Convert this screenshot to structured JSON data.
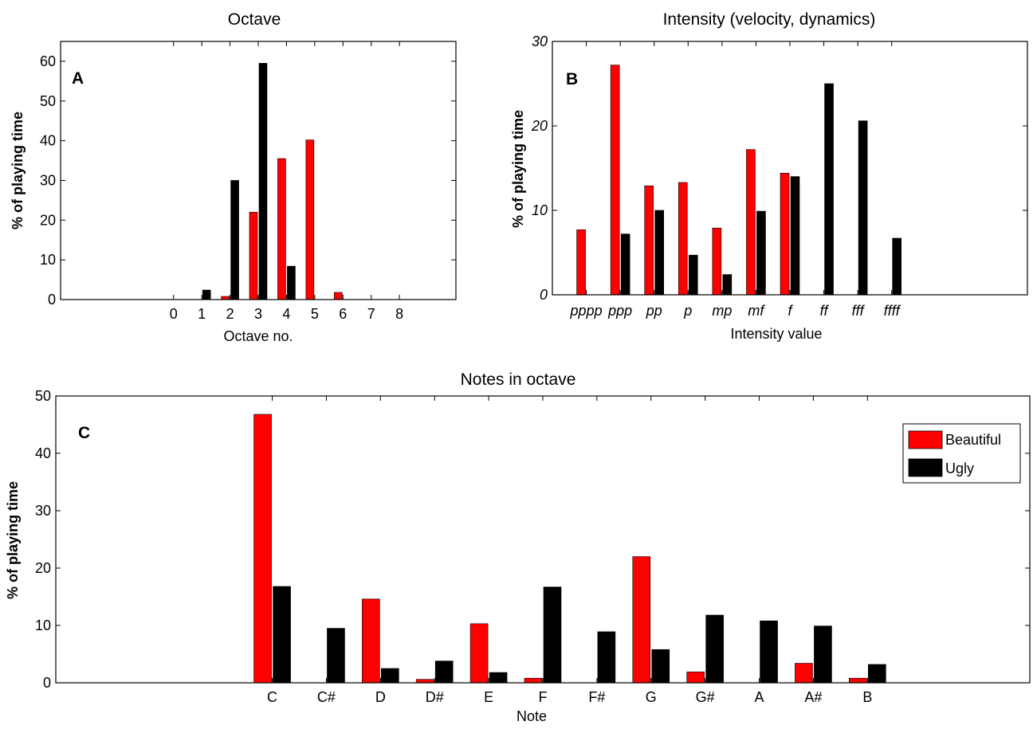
{
  "colors": {
    "beautiful": "#ff0000",
    "ugly": "#000000"
  },
  "chart_data": [
    {
      "type": "bar",
      "panel_label": "A",
      "title": "Octave",
      "xlabel": "Octave no.",
      "ylabel": "% of playing time",
      "categories": [
        "0",
        "1",
        "2",
        "3",
        "4",
        "5",
        "6",
        "7",
        "8"
      ],
      "xlim": [
        -3,
        11
      ],
      "ylim": [
        0,
        65
      ],
      "yticks": [
        0,
        10,
        20,
        30,
        40,
        50,
        60
      ],
      "series": [
        {
          "values": [
            0,
            0,
            0.8,
            22,
            35.5,
            40.2,
            1.8,
            0,
            0
          ]
        },
        {
          "values": [
            0,
            2.4,
            30,
            59.5,
            8.4,
            0,
            0,
            0,
            0
          ]
        }
      ]
    },
    {
      "type": "bar",
      "panel_label": "B",
      "title": "Intensity (velocity, dynamics)",
      "xlabel": "Intensity value",
      "ylabel": "% of playing time",
      "categories": [
        "pppp",
        "ppp",
        "pp",
        "p",
        "mp",
        "mf",
        "f",
        "ff",
        "fff",
        "ffff"
      ],
      "xlim": [
        0,
        14
      ],
      "ylim": [
        0,
        30
      ],
      "yticks": [
        0,
        10,
        20,
        30
      ],
      "series": [
        {
          "values": [
            7.7,
            27.2,
            12.9,
            13.3,
            7.9,
            17.2,
            14.4,
            0,
            0,
            0
          ]
        },
        {
          "values": [
            0,
            7.2,
            10.0,
            4.7,
            2.4,
            9.9,
            14.0,
            25.0,
            20.6,
            6.7
          ]
        }
      ]
    },
    {
      "type": "bar",
      "panel_label": "C",
      "title": "Notes in octave",
      "xlabel": "Note",
      "ylabel": "% of playing time",
      "categories": [
        "C",
        "C#",
        "D",
        "D#",
        "E",
        "F",
        "F#",
        "G",
        "G#",
        "A",
        "A#",
        "B"
      ],
      "xlim": [
        -3,
        15
      ],
      "ylim": [
        0,
        50
      ],
      "yticks": [
        0,
        10,
        20,
        30,
        40,
        50
      ],
      "legend": {
        "placement": "top-right",
        "entries": [
          "Beautiful",
          "Ugly"
        ]
      },
      "series": [
        {
          "name": "Beautiful",
          "values": [
            46.8,
            0,
            14.6,
            0.6,
            10.3,
            0.8,
            0,
            22.0,
            1.9,
            0,
            3.4,
            0.8
          ]
        },
        {
          "name": "Ugly",
          "values": [
            16.8,
            9.5,
            2.5,
            3.8,
            1.8,
            16.7,
            8.9,
            5.8,
            11.8,
            10.8,
            9.9,
            3.2
          ]
        }
      ]
    }
  ]
}
